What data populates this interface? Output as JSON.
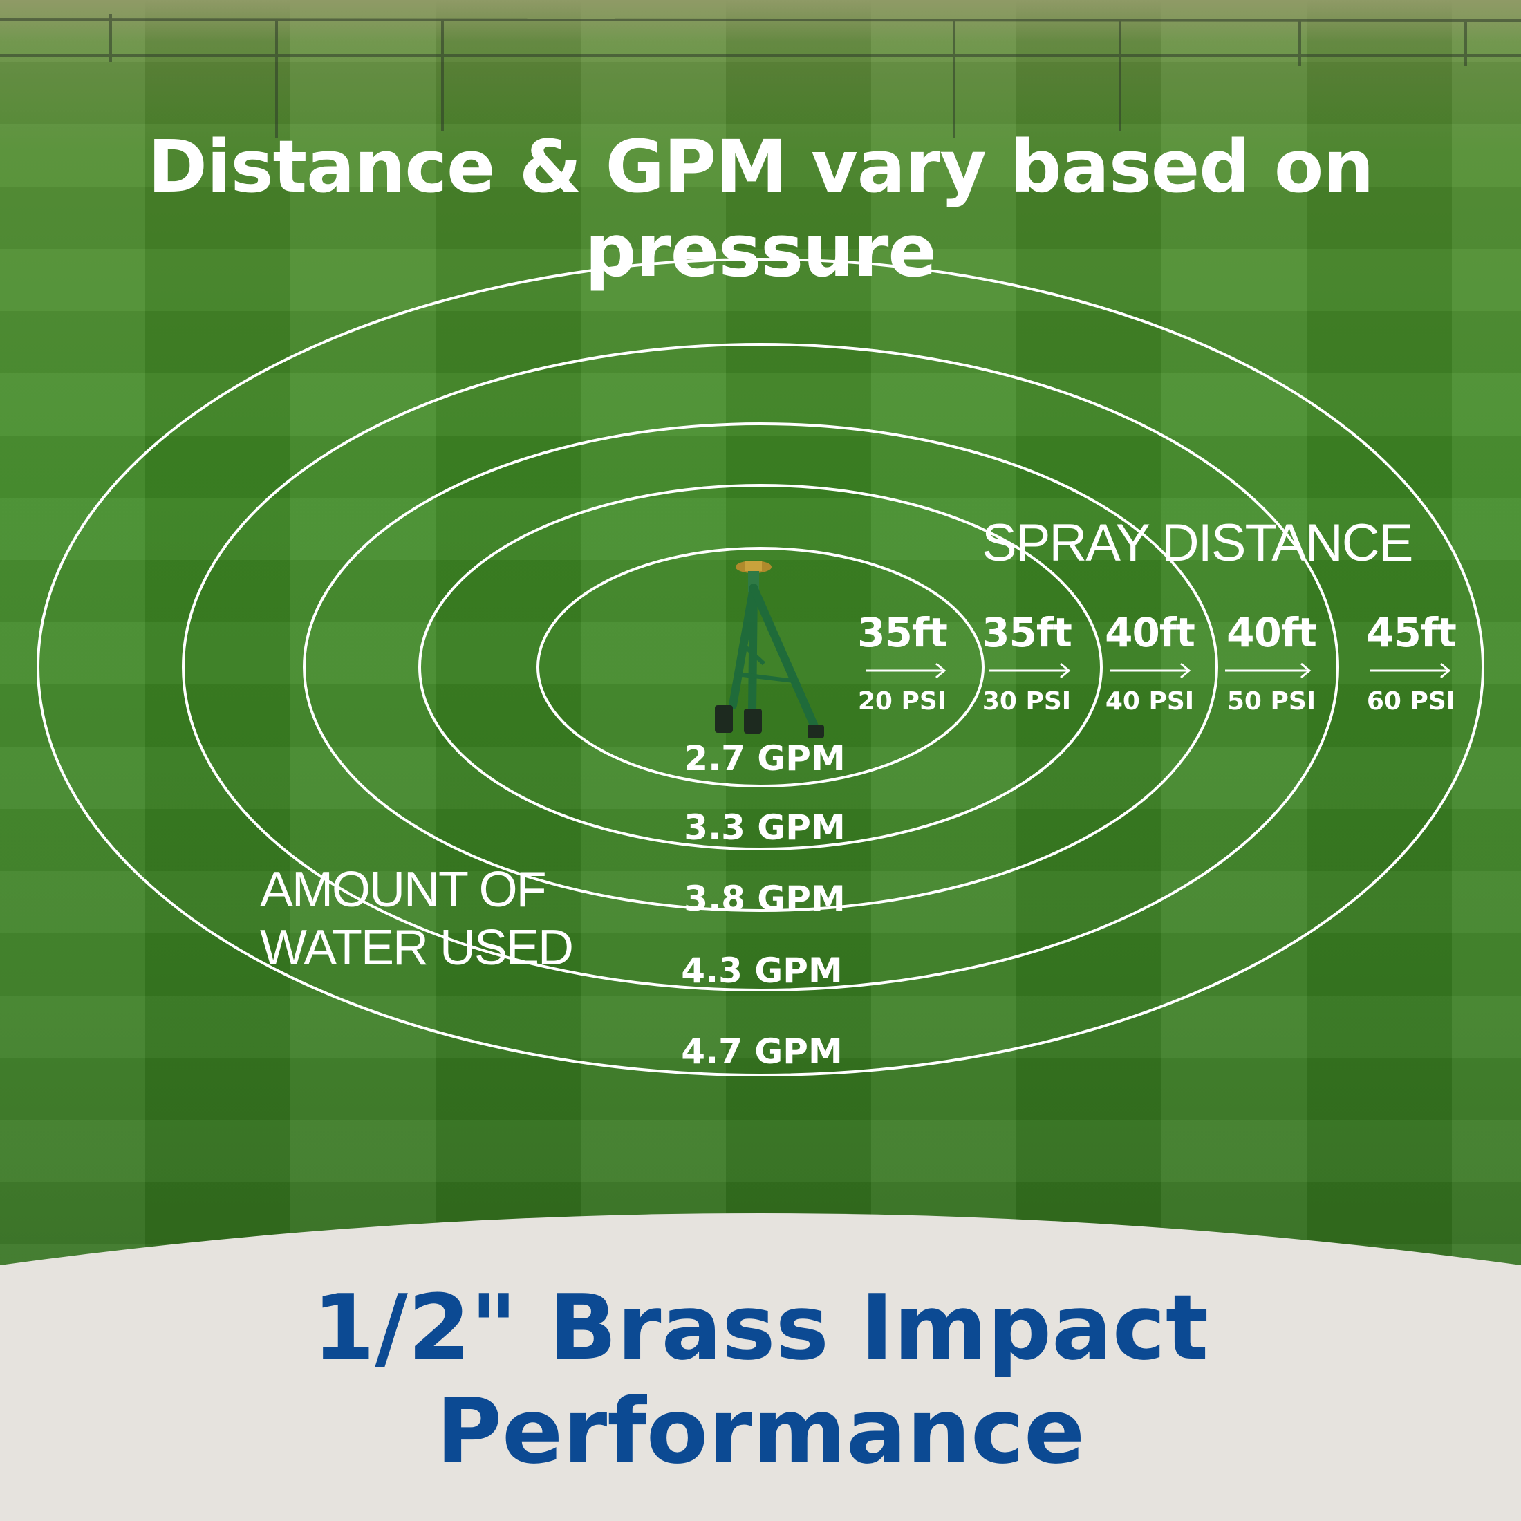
{
  "headline": "Distance & GPM vary based on pressure",
  "spray_distance_label": "SPRAY DISTANCE",
  "distances": [
    {
      "distance": "35ft",
      "pressure": "20 PSI"
    },
    {
      "distance": "35ft",
      "pressure": "30 PSI"
    },
    {
      "distance": "40ft",
      "pressure": "40 PSI"
    },
    {
      "distance": "40ft",
      "pressure": "50 PSI"
    },
    {
      "distance": "45ft",
      "pressure": "60 PSI"
    }
  ],
  "flow_rates": [
    "2.7 GPM",
    "3.3 GPM",
    "3.8 GPM",
    "4.3 GPM",
    "4.7 GPM"
  ],
  "water_label": {
    "line1": "AMOUNT OF",
    "line2": "WATER USED"
  },
  "product_title": {
    "line1": "1/2\" Brass Impact",
    "line2": "Performance"
  },
  "colors": {
    "ring": "#ffffff",
    "text": "#ffffff",
    "title_blue": "#0c4a93",
    "panel": "#e6e3de",
    "lawn": "#3f8a25"
  },
  "icons": {
    "sprinkler": "tripod-sprinkler-icon",
    "arrow": "arrow-right-icon"
  }
}
